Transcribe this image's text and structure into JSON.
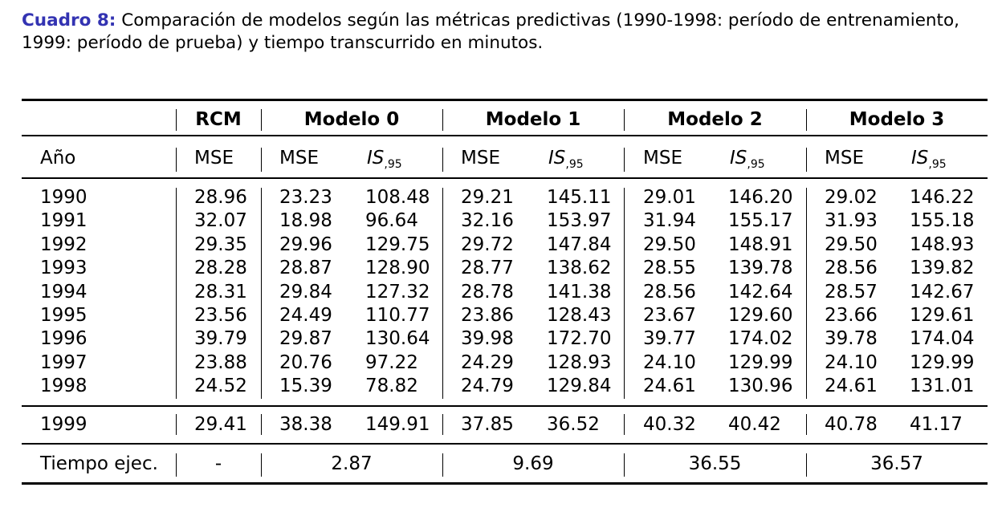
{
  "caption": {
    "label": "Cuadro 8:",
    "text": "Comparación de modelos según las métricas predictivas (1990-1998: período de entrenamiento, 1999: período de prueba) y tiempo transcurrido en minutos."
  },
  "table": {
    "group_headers": [
      "RCM",
      "Modelo 0",
      "Modelo 1",
      "Modelo 2",
      "Modelo 3"
    ],
    "sub_header": {
      "year_label": "Año",
      "mse": "MSE",
      "is_main": "IS",
      "is_sub": ",95"
    },
    "train_rows": [
      {
        "year": "1990",
        "v": [
          "28.96",
          "23.23",
          "108.48",
          "29.21",
          "145.11",
          "29.01",
          "146.20",
          "29.02",
          "146.22"
        ]
      },
      {
        "year": "1991",
        "v": [
          "32.07",
          "18.98",
          "96.64",
          "32.16",
          "153.97",
          "31.94",
          "155.17",
          "31.93",
          "155.18"
        ]
      },
      {
        "year": "1992",
        "v": [
          "29.35",
          "29.96",
          "129.75",
          "29.72",
          "147.84",
          "29.50",
          "148.91",
          "29.50",
          "148.93"
        ]
      },
      {
        "year": "1993",
        "v": [
          "28.28",
          "28.87",
          "128.90",
          "28.77",
          "138.62",
          "28.55",
          "139.78",
          "28.56",
          "139.82"
        ]
      },
      {
        "year": "1994",
        "v": [
          "28.31",
          "29.84",
          "127.32",
          "28.78",
          "141.38",
          "28.56",
          "142.64",
          "28.57",
          "142.67"
        ]
      },
      {
        "year": "1995",
        "v": [
          "23.56",
          "24.49",
          "110.77",
          "23.86",
          "128.43",
          "23.67",
          "129.60",
          "23.66",
          "129.61"
        ]
      },
      {
        "year": "1996",
        "v": [
          "39.79",
          "29.87",
          "130.64",
          "39.98",
          "172.70",
          "39.77",
          "174.02",
          "39.78",
          "174.04"
        ]
      },
      {
        "year": "1997",
        "v": [
          "23.88",
          "20.76",
          "97.22",
          "24.29",
          "128.93",
          "24.10",
          "129.99",
          "24.10",
          "129.99"
        ]
      },
      {
        "year": "1998",
        "v": [
          "24.52",
          "15.39",
          "78.82",
          "24.79",
          "129.84",
          "24.61",
          "130.96",
          "24.61",
          "131.01"
        ]
      }
    ],
    "test_row": {
      "year": "1999",
      "v": [
        "29.41",
        "38.38",
        "149.91",
        "37.85",
        "36.52",
        "40.32",
        "40.42",
        "40.78",
        "41.17"
      ]
    },
    "time_row": {
      "label": "Tiempo ejec.",
      "rcm": "-",
      "models": [
        "2.87",
        "9.69",
        "36.55",
        "36.57"
      ]
    }
  }
}
